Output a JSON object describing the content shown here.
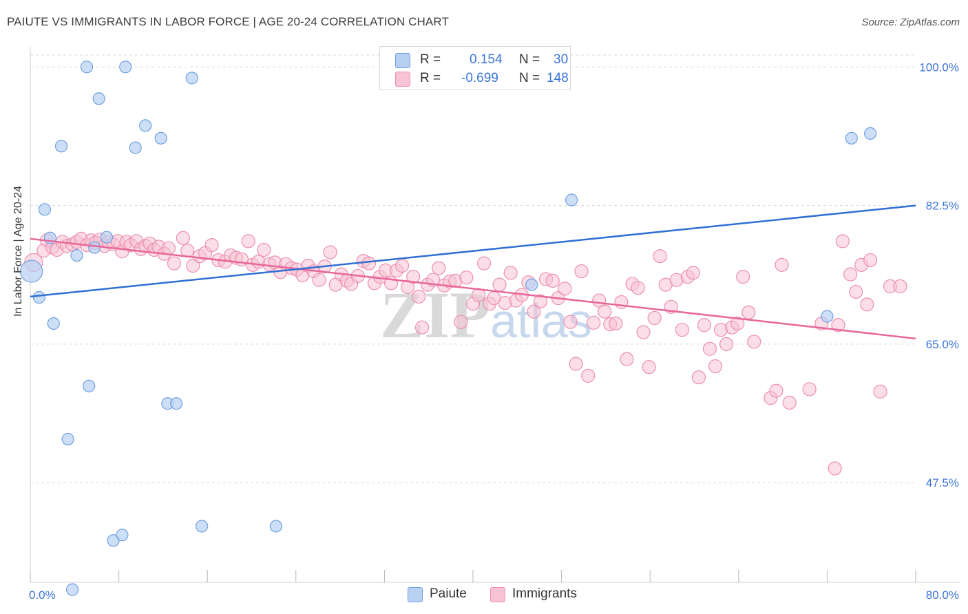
{
  "title": "PAIUTE VS IMMIGRANTS IN LABOR FORCE | AGE 20-24 CORRELATION CHART",
  "source": "Source: ZipAtlas.com",
  "watermark": {
    "zip": "ZIP",
    "atlas": "atlas"
  },
  "colors": {
    "paiute_fill": "#b8d1f3",
    "paiute_stroke": "#6f9fe0",
    "paiute_line": "#2f6fd3",
    "immigrants_fill": "#f8c3d4",
    "immigrants_stroke": "#ec8fb0",
    "immigrants_line": "#e8679a",
    "tick_text": "#3a74d9",
    "grid": "#d9d9d9"
  },
  "legend_top": {
    "rows": [
      {
        "r_label": "R =",
        "r_value": "0.154",
        "n_label": "N =",
        "n_value": "30"
      },
      {
        "r_label": "R =",
        "r_value": "-0.699",
        "n_label": "N =",
        "n_value": "148"
      }
    ]
  },
  "legend_bottom": {
    "paiute": "Paiute",
    "immigrants": "Immigrants"
  },
  "chart_data": {
    "type": "scatter",
    "xlabel": "",
    "ylabel": "In Labor Force | Age 20-24",
    "xlim": [
      0,
      80
    ],
    "ylim": [
      35,
      101.5
    ],
    "y_ticks": [
      47.5,
      65.0,
      82.5,
      100.0
    ],
    "y_tick_labels": [
      "47.5%",
      "65.0%",
      "82.5%",
      "100.0%"
    ],
    "x_tick_labels": [
      "0.0%",
      "80.0%"
    ],
    "x_tick_marks": [
      0,
      8,
      16,
      24,
      32,
      40,
      48,
      56,
      64,
      72,
      80
    ],
    "grid": "horizontal dashed",
    "legend_position": "top-center",
    "series": [
      {
        "name": "Paiute",
        "r": 0.154,
        "n": 30,
        "trend": [
          [
            0,
            71.0
          ],
          [
            80,
            82.5
          ]
        ],
        "points": [
          [
            0.1,
            74.2
          ],
          [
            0.8,
            70.9
          ],
          [
            1.3,
            82.0
          ],
          [
            1.8,
            78.4
          ],
          [
            2.1,
            67.6
          ],
          [
            2.8,
            90.0
          ],
          [
            3.4,
            53.0
          ],
          [
            3.8,
            34.0
          ],
          [
            4.2,
            76.2
          ],
          [
            5.1,
            100.0
          ],
          [
            5.3,
            59.7
          ],
          [
            5.8,
            77.2
          ],
          [
            6.2,
            96.0
          ],
          [
            6.9,
            78.5
          ],
          [
            7.5,
            40.2
          ],
          [
            8.3,
            40.9
          ],
          [
            8.6,
            100.0
          ],
          [
            9.5,
            89.8
          ],
          [
            10.4,
            92.6
          ],
          [
            11.8,
            91.0
          ],
          [
            12.4,
            57.5
          ],
          [
            13.2,
            57.5
          ],
          [
            14.6,
            98.6
          ],
          [
            15.5,
            42.0
          ],
          [
            22.2,
            42.0
          ],
          [
            45.3,
            72.5
          ],
          [
            48.9,
            83.2
          ],
          [
            72.0,
            68.5
          ],
          [
            74.2,
            91.0
          ],
          [
            75.9,
            91.6
          ]
        ]
      },
      {
        "name": "Immigrants",
        "r": -0.699,
        "n": 148,
        "trend": [
          [
            0,
            78.3
          ],
          [
            80,
            65.7
          ]
        ],
        "points": [
          [
            0.3,
            75.3
          ],
          [
            1.2,
            76.8
          ],
          [
            1.5,
            78.1
          ],
          [
            2.0,
            77.2
          ],
          [
            2.4,
            76.9
          ],
          [
            2.9,
            77.9
          ],
          [
            3.3,
            77.4
          ],
          [
            3.8,
            77.6
          ],
          [
            4.2,
            77.9
          ],
          [
            4.6,
            78.3
          ],
          [
            5.1,
            77.5
          ],
          [
            5.5,
            78.1
          ],
          [
            5.9,
            77.8
          ],
          [
            6.3,
            78.2
          ],
          [
            6.7,
            77.4
          ],
          [
            7.1,
            77.9
          ],
          [
            7.5,
            77.6
          ],
          [
            7.9,
            78.0
          ],
          [
            8.3,
            76.7
          ],
          [
            8.7,
            77.9
          ],
          [
            9.1,
            77.5
          ],
          [
            9.6,
            78.0
          ],
          [
            10.0,
            77.0
          ],
          [
            10.4,
            77.4
          ],
          [
            10.8,
            77.7
          ],
          [
            11.2,
            76.9
          ],
          [
            11.6,
            77.3
          ],
          [
            12.1,
            76.4
          ],
          [
            12.5,
            77.1
          ],
          [
            13.0,
            75.2
          ],
          [
            13.8,
            78.4
          ],
          [
            14.2,
            76.8
          ],
          [
            14.7,
            74.9
          ],
          [
            15.3,
            76.1
          ],
          [
            15.8,
            76.5
          ],
          [
            16.4,
            77.5
          ],
          [
            17.0,
            75.6
          ],
          [
            17.6,
            75.4
          ],
          [
            18.1,
            76.2
          ],
          [
            18.6,
            75.9
          ],
          [
            19.1,
            75.7
          ],
          [
            19.7,
            78.0
          ],
          [
            20.1,
            75.0
          ],
          [
            20.6,
            75.4
          ],
          [
            21.1,
            76.9
          ],
          [
            21.6,
            75.1
          ],
          [
            22.1,
            75.3
          ],
          [
            22.6,
            74.1
          ],
          [
            23.1,
            75.1
          ],
          [
            23.6,
            74.6
          ],
          [
            24.1,
            74.4
          ],
          [
            24.6,
            73.7
          ],
          [
            25.1,
            74.9
          ],
          [
            25.6,
            74.2
          ],
          [
            26.1,
            73.1
          ],
          [
            26.6,
            74.8
          ],
          [
            27.1,
            76.6
          ],
          [
            27.6,
            72.5
          ],
          [
            28.1,
            73.8
          ],
          [
            28.6,
            73.0
          ],
          [
            29.0,
            72.6
          ],
          [
            29.6,
            73.6
          ],
          [
            30.1,
            75.5
          ],
          [
            30.6,
            75.2
          ],
          [
            31.1,
            72.7
          ],
          [
            31.6,
            73.5
          ],
          [
            32.1,
            74.3
          ],
          [
            32.6,
            72.7
          ],
          [
            33.1,
            74.3
          ],
          [
            33.6,
            74.9
          ],
          [
            34.1,
            72.2
          ],
          [
            34.6,
            73.5
          ],
          [
            35.1,
            71.0
          ],
          [
            35.4,
            67.1
          ],
          [
            35.9,
            72.5
          ],
          [
            36.4,
            73.1
          ],
          [
            36.9,
            74.6
          ],
          [
            37.4,
            72.4
          ],
          [
            37.9,
            72.9
          ],
          [
            38.4,
            73.0
          ],
          [
            38.9,
            67.8
          ],
          [
            39.4,
            73.4
          ],
          [
            40.0,
            70.1
          ],
          [
            40.5,
            71.2
          ],
          [
            41.0,
            75.2
          ],
          [
            41.5,
            70.1
          ],
          [
            41.9,
            70.8
          ],
          [
            42.4,
            72.5
          ],
          [
            42.9,
            70.2
          ],
          [
            43.4,
            74.0
          ],
          [
            43.9,
            70.5
          ],
          [
            44.4,
            71.2
          ],
          [
            45.0,
            72.8
          ],
          [
            45.5,
            69.1
          ],
          [
            46.1,
            70.4
          ],
          [
            46.6,
            73.2
          ],
          [
            47.2,
            73.0
          ],
          [
            47.7,
            70.8
          ],
          [
            48.3,
            72.0
          ],
          [
            48.8,
            67.8
          ],
          [
            49.3,
            62.5
          ],
          [
            49.8,
            74.2
          ],
          [
            50.4,
            61.0
          ],
          [
            50.9,
            67.7
          ],
          [
            51.4,
            70.5
          ],
          [
            51.9,
            69.1
          ],
          [
            52.4,
            67.5
          ],
          [
            52.9,
            67.6
          ],
          [
            53.4,
            70.3
          ],
          [
            53.9,
            63.1
          ],
          [
            54.4,
            72.6
          ],
          [
            54.9,
            72.1
          ],
          [
            55.4,
            66.5
          ],
          [
            55.9,
            62.1
          ],
          [
            56.4,
            68.3
          ],
          [
            56.9,
            76.1
          ],
          [
            57.4,
            72.5
          ],
          [
            57.9,
            69.7
          ],
          [
            58.4,
            73.1
          ],
          [
            58.9,
            66.8
          ],
          [
            59.4,
            73.5
          ],
          [
            59.9,
            74.0
          ],
          [
            60.4,
            60.8
          ],
          [
            60.9,
            67.4
          ],
          [
            61.4,
            64.4
          ],
          [
            61.9,
            62.2
          ],
          [
            62.4,
            66.8
          ],
          [
            62.9,
            65.0
          ],
          [
            63.4,
            67.1
          ],
          [
            63.9,
            67.6
          ],
          [
            64.4,
            73.5
          ],
          [
            64.9,
            69.0
          ],
          [
            65.4,
            65.3
          ],
          [
            66.9,
            58.2
          ],
          [
            67.4,
            59.1
          ],
          [
            67.9,
            75.0
          ],
          [
            68.6,
            57.6
          ],
          [
            70.4,
            59.3
          ],
          [
            71.5,
            67.6
          ],
          [
            72.7,
            49.3
          ],
          [
            73.0,
            67.4
          ],
          [
            73.4,
            78.0
          ],
          [
            74.1,
            73.8
          ],
          [
            74.6,
            71.6
          ],
          [
            75.1,
            75.0
          ],
          [
            75.6,
            70.0
          ],
          [
            75.9,
            75.6
          ],
          [
            76.8,
            59.0
          ],
          [
            77.7,
            72.3
          ],
          [
            78.6,
            72.3
          ]
        ]
      }
    ]
  }
}
